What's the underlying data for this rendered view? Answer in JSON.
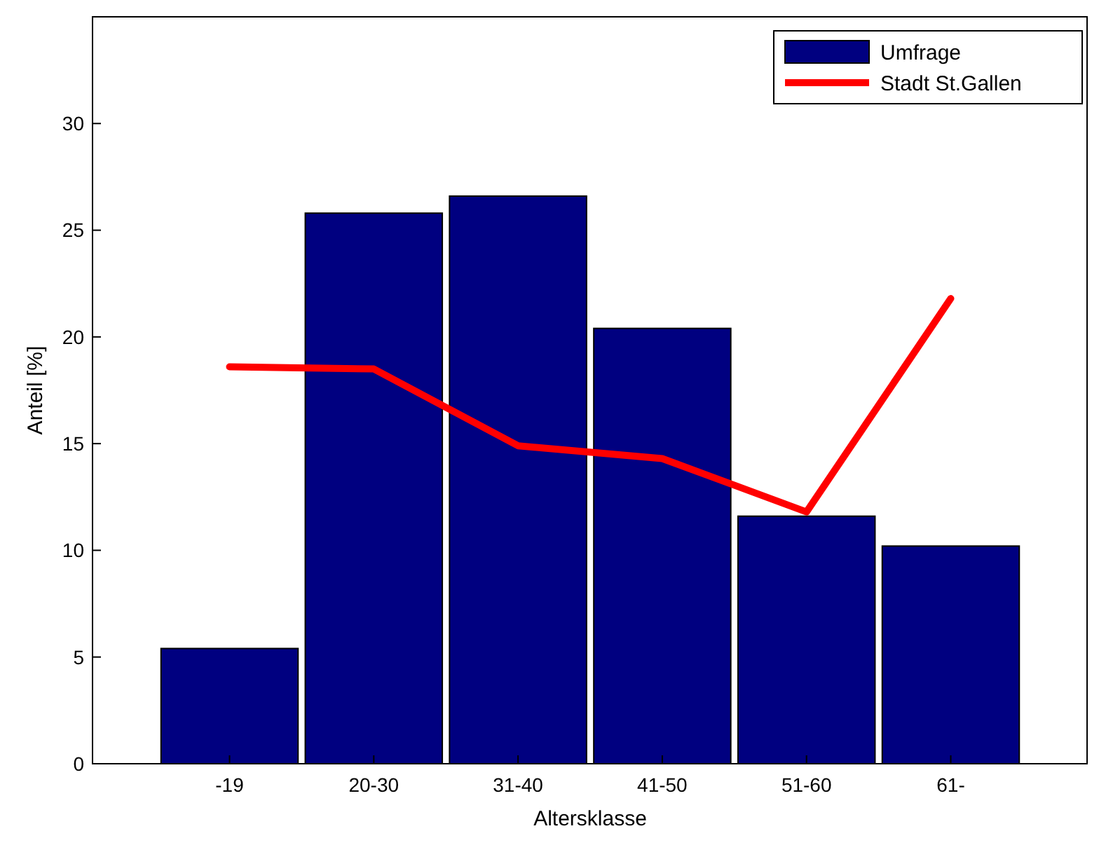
{
  "chart_data": {
    "type": "bar",
    "xlabel": "Altersklasse",
    "ylabel": "Anteil [%]",
    "categories": [
      "-19",
      "20-30",
      "31-40",
      "41-50",
      "51-60",
      "61-"
    ],
    "series": [
      {
        "name": "Umfrage",
        "color": "#000080",
        "values": [
          5.4,
          25.8,
          26.6,
          20.4,
          11.6,
          10.2
        ]
      },
      {
        "name": "Stadt St.Gallen",
        "type": "line",
        "color": "#ff0000",
        "values": [
          18.6,
          18.5,
          14.9,
          14.3,
          11.8,
          21.8
        ]
      }
    ],
    "ylim": [
      0,
      35
    ],
    "yticks": [
      0,
      5,
      10,
      15,
      20,
      25,
      30
    ],
    "grid": false,
    "legend": "top right"
  }
}
